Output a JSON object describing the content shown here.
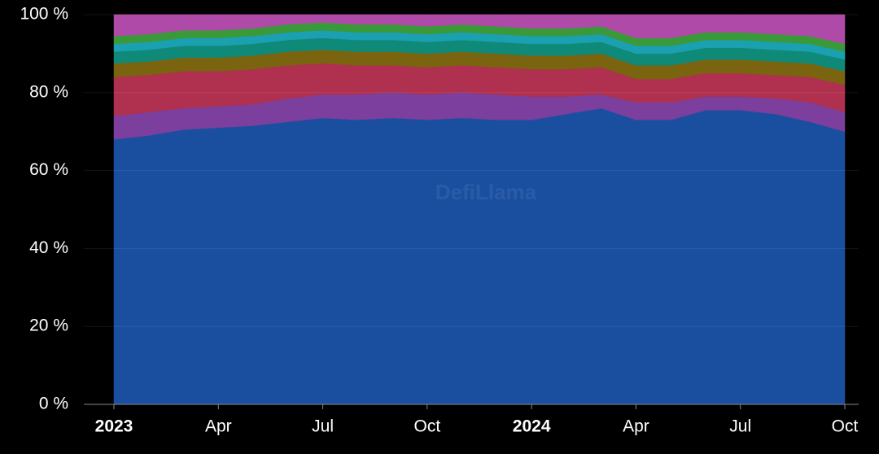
{
  "chart_data": {
    "type": "stacked-area-percent",
    "watermark": "DefiLlama",
    "x": [
      "2023-01",
      "2023-02",
      "2023-03",
      "2023-04",
      "2023-05",
      "2023-06",
      "2023-07",
      "2023-08",
      "2023-09",
      "2023-10",
      "2023-11",
      "2023-12",
      "2024-01",
      "2024-02",
      "2024-03",
      "2024-04",
      "2024-05",
      "2024-06",
      "2024-07",
      "2024-08",
      "2024-09",
      "2024-10"
    ],
    "xlim": [
      "2023-01",
      "2024-10"
    ],
    "xticks": [
      {
        "value": "2023-01",
        "label": "2023"
      },
      {
        "value": "2023-04",
        "label": "Apr"
      },
      {
        "value": "2023-07",
        "label": "Jul"
      },
      {
        "value": "2023-10",
        "label": "Oct"
      },
      {
        "value": "2024-01",
        "label": "2024"
      },
      {
        "value": "2024-04",
        "label": "Apr"
      },
      {
        "value": "2024-07",
        "label": "Jul"
      },
      {
        "value": "2024-10",
        "label": "Oct"
      }
    ],
    "ylim": [
      0,
      100
    ],
    "yticks": [
      {
        "value": 0,
        "label": "0 %"
      },
      {
        "value": 20,
        "label": "20 %"
      },
      {
        "value": 40,
        "label": "40 %"
      },
      {
        "value": 60,
        "label": "60 %"
      },
      {
        "value": 80,
        "label": "80 %"
      },
      {
        "value": 100,
        "label": "100 %"
      }
    ],
    "grid": true,
    "series": [
      {
        "color": "#1a4fa0",
        "values": [
          68,
          69,
          70.5,
          71,
          71.5,
          72.5,
          73.5,
          73,
          73.5,
          73,
          73.5,
          73,
          73,
          74.5,
          76,
          73,
          73,
          75.5,
          75.5,
          74.5,
          72.5,
          70
        ]
      },
      {
        "color": "#7c3f9e",
        "values": [
          6,
          6,
          5.5,
          5.5,
          5.5,
          6,
          6,
          6.5,
          6.5,
          6.5,
          6.5,
          6.5,
          6,
          4.5,
          3.5,
          4.5,
          4.5,
          3.5,
          3.5,
          4,
          5,
          5
        ]
      },
      {
        "color": "#b0304f",
        "values": [
          10,
          9.5,
          9.5,
          9,
          9,
          8.5,
          8,
          7.5,
          7,
          7,
          7,
          7,
          7,
          7,
          7,
          6,
          6,
          6,
          6,
          6,
          6.5,
          7
        ]
      },
      {
        "color": "#7a6410",
        "values": [
          3.5,
          3.5,
          3.5,
          3.5,
          3.5,
          3.5,
          3.5,
          3.5,
          3.5,
          3.5,
          3.5,
          3.5,
          3.5,
          3.5,
          3.5,
          3.5,
          3.5,
          3.5,
          3.5,
          3.5,
          3.5,
          3.5
        ]
      },
      {
        "color": "#0f8a78",
        "values": [
          3,
          3,
          3,
          3,
          3,
          3,
          3,
          3,
          3,
          3,
          3,
          3,
          3,
          3,
          3,
          3,
          3,
          3,
          3,
          3,
          3,
          3
        ]
      },
      {
        "color": "#1aa0b0",
        "values": [
          2,
          2,
          2,
          2,
          2,
          2,
          2,
          2,
          2,
          2,
          2,
          2,
          2,
          2,
          2,
          2,
          2,
          2,
          2,
          2,
          2,
          2
        ]
      },
      {
        "color": "#3a9a3a",
        "values": [
          2,
          2,
          2,
          2,
          2,
          2,
          2,
          2,
          2,
          2,
          2,
          2,
          2,
          2,
          2,
          2,
          2,
          2,
          2,
          2,
          2,
          2
        ]
      },
      {
        "color": "#b04aa8",
        "values": [
          5.5,
          5,
          4,
          4,
          3.5,
          2.5,
          2,
          2.5,
          2.5,
          3,
          2.5,
          3,
          3.5,
          3.5,
          3,
          6,
          6,
          4.5,
          4.5,
          5,
          5.5,
          7.5
        ]
      }
    ]
  }
}
